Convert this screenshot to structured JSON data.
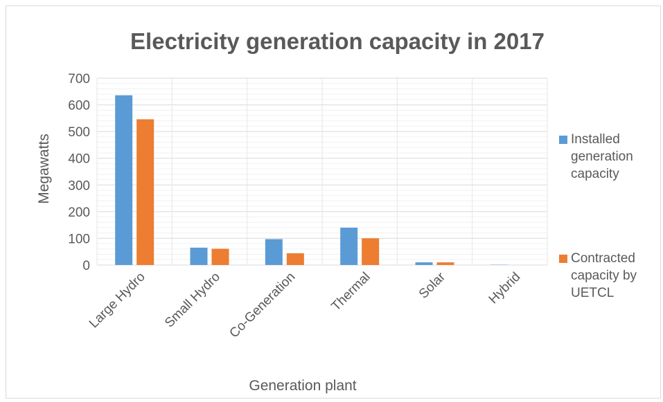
{
  "chart_data": {
    "type": "bar",
    "title": "Electricity generation capacity in 2017",
    "xlabel": "Generation plant",
    "ylabel": "Megawatts",
    "ylim": [
      0,
      700
    ],
    "yticks": [
      0,
      100,
      200,
      300,
      400,
      500,
      600,
      700
    ],
    "categories": [
      "Large Hydro",
      "Small Hydro",
      "Co-Generation",
      "Thermal",
      "Solar",
      "Hybrid"
    ],
    "series": [
      {
        "name": "Installed generation capacity",
        "legend_lines": [
          "Installed",
          "generation",
          "capacity"
        ],
        "color": "#5b9bd5",
        "values": [
          636,
          65,
          97,
          140,
          10,
          1
        ]
      },
      {
        "name": "Contracted capacity by UETCL",
        "legend_lines": [
          "Contracted",
          "capacity by",
          "UETCL"
        ],
        "color": "#ed7d31",
        "values": [
          546,
          61,
          44,
          100,
          10,
          0
        ]
      }
    ],
    "grid": true,
    "legend_position": "right"
  }
}
